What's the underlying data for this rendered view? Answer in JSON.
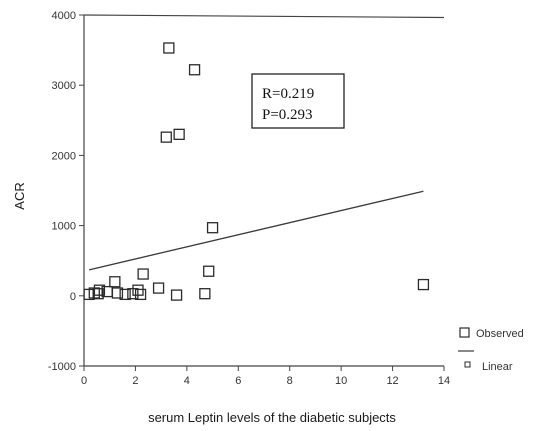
{
  "chart_data": {
    "type": "scatter",
    "title": "",
    "xlabel": "serum Leptin levels of the diabetic subjects",
    "ylabel": "ACR",
    "xlim": [
      0,
      14
    ],
    "ylim": [
      -1000,
      4000
    ],
    "x_ticks": [
      "0",
      "2",
      "4",
      "6",
      "8",
      "10",
      "12",
      "14"
    ],
    "y_ticks": [
      "4000",
      "3000",
      "2000",
      "1000",
      "0",
      "-1000"
    ],
    "grid": false,
    "annotation": {
      "line1": "R=0.219",
      "line2": "P=0.293"
    },
    "legend": {
      "placement": "bottom-right",
      "observed_label": "Observed",
      "linear_label": "Linear"
    },
    "series": [
      {
        "name": "Observed",
        "kind": "points",
        "points": [
          [
            0.2,
            20
          ],
          [
            0.4,
            40
          ],
          [
            0.55,
            30
          ],
          [
            0.6,
            80
          ],
          [
            0.9,
            60
          ],
          [
            1.2,
            200
          ],
          [
            1.3,
            40
          ],
          [
            1.6,
            20
          ],
          [
            1.9,
            30
          ],
          [
            2.1,
            80
          ],
          [
            2.2,
            20
          ],
          [
            2.3,
            310
          ],
          [
            2.9,
            110
          ],
          [
            3.2,
            2260
          ],
          [
            3.3,
            3530
          ],
          [
            3.6,
            10
          ],
          [
            3.7,
            2300
          ],
          [
            4.3,
            3220
          ],
          [
            4.7,
            30
          ],
          [
            4.85,
            350
          ],
          [
            5.0,
            970
          ],
          [
            13.2,
            160
          ]
        ]
      },
      {
        "name": "Linear",
        "kind": "line",
        "points": [
          [
            0.2,
            370
          ],
          [
            13.2,
            1490
          ]
        ]
      }
    ],
    "colors": {
      "points": "#2b2b2b",
      "line": "#3a3a3a",
      "axis": "#444444"
    }
  }
}
